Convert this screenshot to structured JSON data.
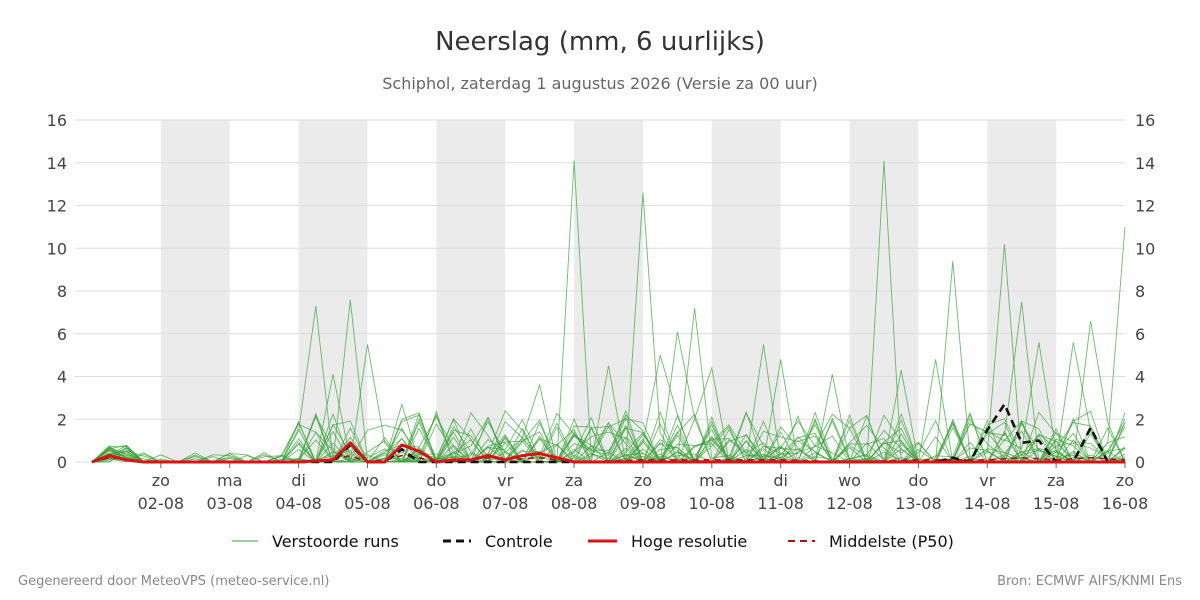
{
  "chart_data": {
    "type": "line",
    "title": "Neerslag (mm, 6 uurlijks)",
    "subtitle": "Schiphol, zaterdag  1 augustus 2026 (Versie za 00 uur)",
    "x_range_days": [
      0,
      15
    ],
    "ylim": [
      0,
      16
    ],
    "yticks": [
      0,
      2,
      4,
      6,
      8,
      10,
      12,
      14,
      16
    ],
    "day_ticks": [
      {
        "x": 1,
        "day": "zo",
        "date": "02-08"
      },
      {
        "x": 2,
        "day": "ma",
        "date": "03-08"
      },
      {
        "x": 3,
        "day": "di",
        "date": "04-08"
      },
      {
        "x": 4,
        "day": "wo",
        "date": "05-08"
      },
      {
        "x": 5,
        "day": "do",
        "date": "06-08"
      },
      {
        "x": 6,
        "day": "vr",
        "date": "07-08"
      },
      {
        "x": 7,
        "day": "za",
        "date": "08-08"
      },
      {
        "x": 8,
        "day": "zo",
        "date": "09-08"
      },
      {
        "x": 9,
        "day": "ma",
        "date": "10-08"
      },
      {
        "x": 10,
        "day": "di",
        "date": "11-08"
      },
      {
        "x": 11,
        "day": "wo",
        "date": "12-08"
      },
      {
        "x": 12,
        "day": "do",
        "date": "13-08"
      },
      {
        "x": 13,
        "day": "vr",
        "date": "14-08"
      },
      {
        "x": 14,
        "day": "za",
        "date": "15-08"
      },
      {
        "x": 15,
        "day": "zo",
        "date": "16-08"
      }
    ],
    "shaded_days": [
      [
        1,
        2
      ],
      [
        3,
        4
      ],
      [
        5,
        6
      ],
      [
        7,
        8
      ],
      [
        9,
        10
      ],
      [
        11,
        12
      ],
      [
        13,
        14
      ]
    ],
    "grid": true,
    "legend_position": "bottom",
    "series": [
      {
        "name": "Verstoorde runs",
        "style": "thin-green",
        "color": "#3da33d",
        "ensemble_peaks": [
          {
            "x": 3.25,
            "y": 7.3
          },
          {
            "x": 3.5,
            "y": 4.1
          },
          {
            "x": 3.75,
            "y": 7.6
          },
          {
            "x": 4.0,
            "y": 5.5
          },
          {
            "x": 4.5,
            "y": 2.7
          },
          {
            "x": 5.5,
            "y": 2.3
          },
          {
            "x": 6.5,
            "y": 3.6
          },
          {
            "x": 7.0,
            "y": 14.1
          },
          {
            "x": 7.5,
            "y": 4.5
          },
          {
            "x": 8.0,
            "y": 12.6
          },
          {
            "x": 8.25,
            "y": 5.0
          },
          {
            "x": 8.5,
            "y": 6.1
          },
          {
            "x": 8.75,
            "y": 7.2
          },
          {
            "x": 9.0,
            "y": 4.4
          },
          {
            "x": 9.75,
            "y": 5.5
          },
          {
            "x": 10.0,
            "y": 4.8
          },
          {
            "x": 10.75,
            "y": 4.1
          },
          {
            "x": 11.5,
            "y": 14.1
          },
          {
            "x": 11.75,
            "y": 4.3
          },
          {
            "x": 12.25,
            "y": 4.8
          },
          {
            "x": 12.5,
            "y": 9.4
          },
          {
            "x": 13.25,
            "y": 10.2
          },
          {
            "x": 13.5,
            "y": 7.5
          },
          {
            "x": 13.75,
            "y": 5.6
          },
          {
            "x": 14.25,
            "y": 5.6
          },
          {
            "x": 14.5,
            "y": 6.6
          },
          {
            "x": 15.0,
            "y": 11.0
          }
        ]
      },
      {
        "name": "Controle",
        "style": "black-dashed",
        "color": "#111111",
        "x": [
          0,
          0.25,
          0.5,
          0.75,
          1,
          2,
          3,
          3.5,
          3.75,
          4,
          4.25,
          4.5,
          4.75,
          5,
          6,
          7,
          8,
          9,
          10,
          11,
          12,
          12.25,
          12.5,
          12.75,
          13,
          13.25,
          13.5,
          13.75,
          14,
          14.25,
          14.5,
          14.75,
          15
        ],
        "y": [
          0,
          0.3,
          0.1,
          0,
          0,
          0,
          0,
          0,
          0.8,
          0,
          0,
          0.6,
          0,
          0,
          0,
          0,
          0,
          0,
          0,
          0,
          0,
          0,
          0.2,
          0,
          1.5,
          2.7,
          0.9,
          1.0,
          0,
          0,
          1.6,
          0,
          0
        ]
      },
      {
        "name": "Hoge resolutie",
        "style": "red-thick",
        "color": "#dd1111",
        "x": [
          0,
          0.25,
          0.5,
          0.75,
          1,
          2,
          3,
          3.5,
          3.75,
          4,
          4.25,
          4.5,
          4.75,
          5,
          5.25,
          5.5,
          5.75,
          6,
          6.25,
          6.5,
          6.75,
          7,
          8,
          9,
          10,
          11,
          12,
          13,
          14,
          15
        ],
        "y": [
          0,
          0.3,
          0.1,
          0,
          0,
          0,
          0,
          0.1,
          0.9,
          0,
          0,
          0.8,
          0.5,
          0,
          0.1,
          0.1,
          0.3,
          0.1,
          0.3,
          0.4,
          0.2,
          0,
          0,
          0,
          0,
          0,
          0,
          0,
          0,
          0
        ]
      },
      {
        "name": "Middelste (P50)",
        "style": "red-dashed",
        "color": "#aa1111",
        "x": [
          0,
          0.25,
          0.5,
          1,
          3,
          3.5,
          3.75,
          4,
          4.25,
          4.5,
          4.75,
          5,
          5.5,
          5.75,
          6,
          6.5,
          7,
          8,
          9,
          10,
          11,
          12,
          13,
          13.5,
          14,
          14.5,
          15
        ],
        "y": [
          0,
          0.2,
          0.1,
          0,
          0,
          0.1,
          0.3,
          0,
          0.1,
          0.3,
          0.2,
          0,
          0.1,
          0.2,
          0.1,
          0.2,
          0,
          0.1,
          0.1,
          0.1,
          0,
          0.1,
          0.1,
          0.2,
          0.1,
          0.2,
          0.1
        ]
      }
    ]
  },
  "footer": {
    "left": "Gegenereerd door MeteoVPS (meteo-service.nl)",
    "right": "Bron: ECMWF AIFS/KNMI Ens"
  }
}
